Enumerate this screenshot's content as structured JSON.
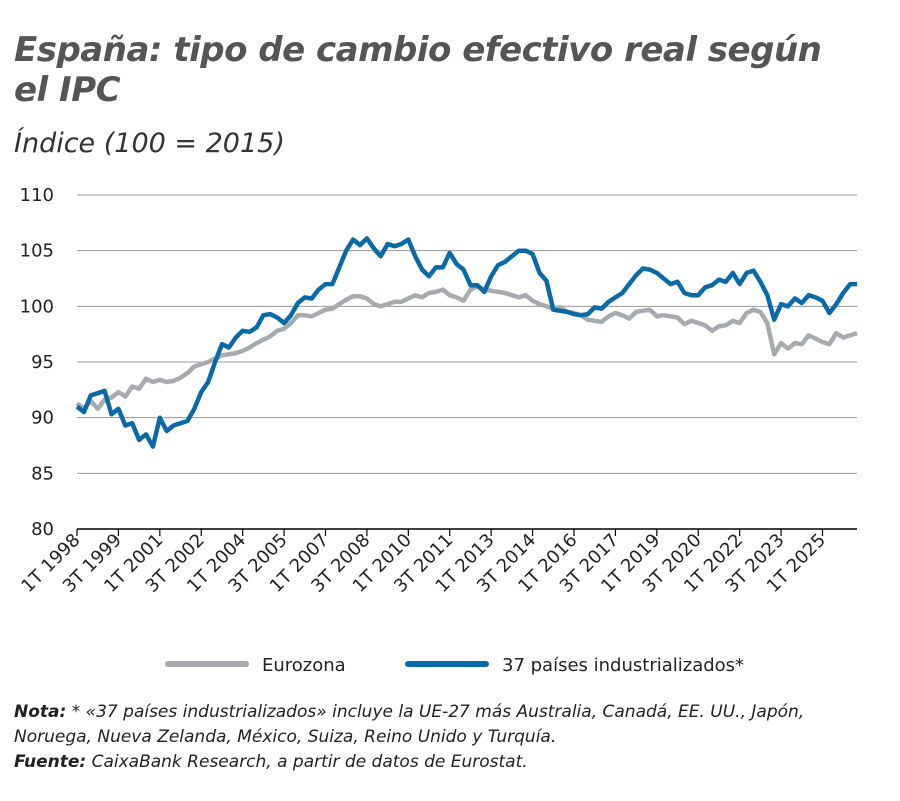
{
  "chart_data": {
    "type": "line",
    "title": "España: tipo de cambio efectivo real según el IPC",
    "subtitle": "Índice (100 = 2015)",
    "categories": [
      "1T 1998",
      null,
      null,
      null,
      null,
      null,
      "3T 1999",
      null,
      null,
      null,
      null,
      null,
      "1T 2001",
      null,
      null,
      null,
      null,
      null,
      "3T 2002",
      null,
      null,
      null,
      null,
      null,
      "1T 2004",
      null,
      null,
      null,
      null,
      null,
      "3T 2005",
      null,
      null,
      null,
      null,
      null,
      "1T 2007",
      null,
      null,
      null,
      null,
      null,
      "3T 2008",
      null,
      null,
      null,
      null,
      null,
      "1T 2010",
      null,
      null,
      null,
      null,
      null,
      "3T 2011",
      null,
      null,
      null,
      null,
      null,
      "1T 2013",
      null,
      null,
      null,
      null,
      null,
      "3T 2014",
      null,
      null,
      null,
      null,
      null,
      "1T 2016",
      null,
      null,
      null,
      null,
      null,
      "3T 2017",
      null,
      null,
      null,
      null,
      null,
      "1T 2019",
      null,
      null,
      null,
      null,
      null,
      "3T 2020",
      null,
      null,
      null,
      null,
      null,
      "1T 2022",
      null,
      null,
      null,
      null,
      null,
      "3T 2023",
      null,
      null,
      null,
      null,
      null,
      "1T 2025",
      null,
      null,
      null,
      null,
      null
    ],
    "series": [
      {
        "name": "Eurozona",
        "color": "#a6abad",
        "values": [
          91.3,
          90.8,
          91.5,
          90.8,
          91.6,
          91.8,
          92.3,
          91.9,
          92.8,
          92.6,
          93.5,
          93.2,
          93.4,
          93.2,
          93.3,
          93.6,
          94.0,
          94.6,
          94.8,
          95.0,
          95.3,
          95.6,
          95.7,
          95.8,
          96.0,
          96.3,
          96.7,
          97.0,
          97.3,
          97.8,
          98.0,
          98.5,
          99.2,
          99.2,
          99.1,
          99.4,
          99.7,
          99.8,
          100.2,
          100.6,
          100.9,
          100.9,
          100.7,
          100.2,
          100.0,
          100.2,
          100.4,
          100.4,
          100.7,
          101.0,
          100.8,
          101.2,
          101.3,
          101.5,
          101.0,
          100.8,
          100.5,
          101.5,
          101.8,
          101.5,
          101.4,
          101.3,
          101.2,
          101.0,
          100.8,
          101.0,
          100.5,
          100.2,
          100.0,
          99.8,
          99.9,
          99.5,
          99.4,
          99.2,
          98.8,
          98.7,
          98.6,
          99.1,
          99.4,
          99.2,
          98.9,
          99.5,
          99.6,
          99.7,
          99.1,
          99.2,
          99.1,
          99.0,
          98.4,
          98.7,
          98.5,
          98.3,
          97.8,
          98.2,
          98.3,
          98.7,
          98.5,
          99.4,
          99.7,
          99.5,
          98.5,
          95.7,
          96.7,
          96.2,
          96.7,
          96.6,
          97.4,
          97.1,
          96.8,
          96.6,
          97.6,
          97.2,
          97.4,
          97.6
        ]
      },
      {
        "name": "37 países industrializados*",
        "color": "#0a6aa8",
        "values": [
          91.0,
          90.5,
          92.0,
          92.2,
          92.4,
          90.3,
          90.8,
          89.3,
          89.5,
          88.0,
          88.5,
          87.4,
          90.0,
          88.8,
          89.3,
          89.5,
          89.7,
          90.8,
          92.3,
          93.2,
          95.0,
          96.6,
          96.3,
          97.2,
          97.8,
          97.7,
          98.1,
          99.2,
          99.3,
          99.0,
          98.5,
          99.2,
          100.3,
          100.8,
          100.7,
          101.5,
          102.0,
          102.0,
          103.5,
          105.0,
          106.0,
          105.5,
          106.1,
          105.2,
          104.5,
          105.6,
          105.4,
          105.6,
          106.0,
          104.5,
          103.3,
          102.7,
          103.5,
          103.5,
          104.8,
          103.8,
          103.3,
          101.9,
          101.9,
          101.3,
          102.7,
          103.7,
          104.0,
          104.5,
          105.0,
          105.0,
          104.7,
          103.0,
          102.3,
          99.7,
          99.6,
          99.5,
          99.3,
          99.2,
          99.3,
          99.9,
          99.8,
          100.4,
          100.8,
          101.2,
          102.0,
          102.8,
          103.4,
          103.3,
          103.0,
          102.5,
          102.0,
          102.2,
          101.2,
          101.0,
          101.0,
          101.7,
          101.9,
          102.4,
          102.2,
          103.0,
          102.0,
          103.0,
          103.2,
          102.2,
          101.0,
          98.8,
          100.2,
          100.0,
          100.7,
          100.3,
          101.0,
          100.8,
          100.5,
          99.4,
          100.2,
          101.2,
          102.0,
          102.0
        ]
      }
    ],
    "ylim": [
      80,
      110
    ],
    "yticks": [
      80,
      85,
      90,
      95,
      100,
      105,
      110
    ],
    "grid": true,
    "legend": "bottom",
    "notes": [
      {
        "label": "Nota:",
        "text": " * «37 países industrializados» incluye la UE-27 más Australia, Canadá, EE. UU., Japón, Noruega, Nueva Zelanda, México, Suiza, Reino Unido y Turquía."
      },
      {
        "label": "Fuente:",
        "text": " CaixaBank Research, a partir de datos de Eurostat."
      }
    ]
  }
}
